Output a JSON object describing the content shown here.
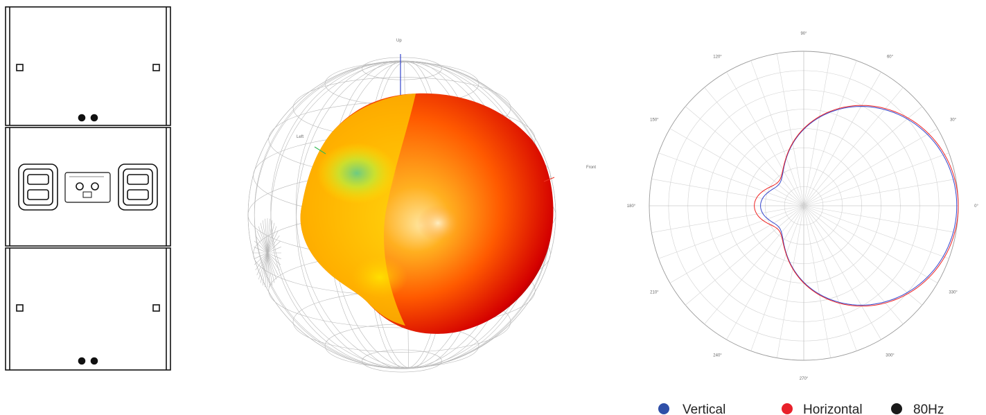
{
  "balloon": {
    "axis_labels": {
      "up": "Up",
      "left": "Left",
      "front": "Front"
    },
    "axis_colors": {
      "up": "#3344cc",
      "left": "#33bb55",
      "front": "#ee3322"
    }
  },
  "chart_data": {
    "type": "polar",
    "angle_labels": [
      "0°",
      "30°",
      "60°",
      "90°",
      "120°",
      "150°",
      "180°",
      "210°",
      "240°",
      "270°",
      "300°",
      "330°"
    ],
    "angle_values_deg": [
      0,
      30,
      60,
      90,
      120,
      150,
      180,
      210,
      240,
      270,
      300,
      330
    ],
    "series": [
      {
        "name": "Vertical",
        "color": "#3344cc",
        "shape": "cardioid",
        "front_level": 0.99,
        "rear_lobe": 0.28,
        "side_level": 0.44
      },
      {
        "name": "Horizontal",
        "color": "#ee2222",
        "shape": "cardioid",
        "front_level": 1.0,
        "rear_lobe": 0.32,
        "side_level": 0.52
      }
    ],
    "legend": [
      {
        "label": "Vertical",
        "color": "#2f4fa8"
      },
      {
        "label": "Horizontal",
        "color": "#e8202a"
      },
      {
        "label": "80Hz",
        "color": "#1a1a1a"
      }
    ],
    "grid": true,
    "legend_position": "bottom-right"
  }
}
